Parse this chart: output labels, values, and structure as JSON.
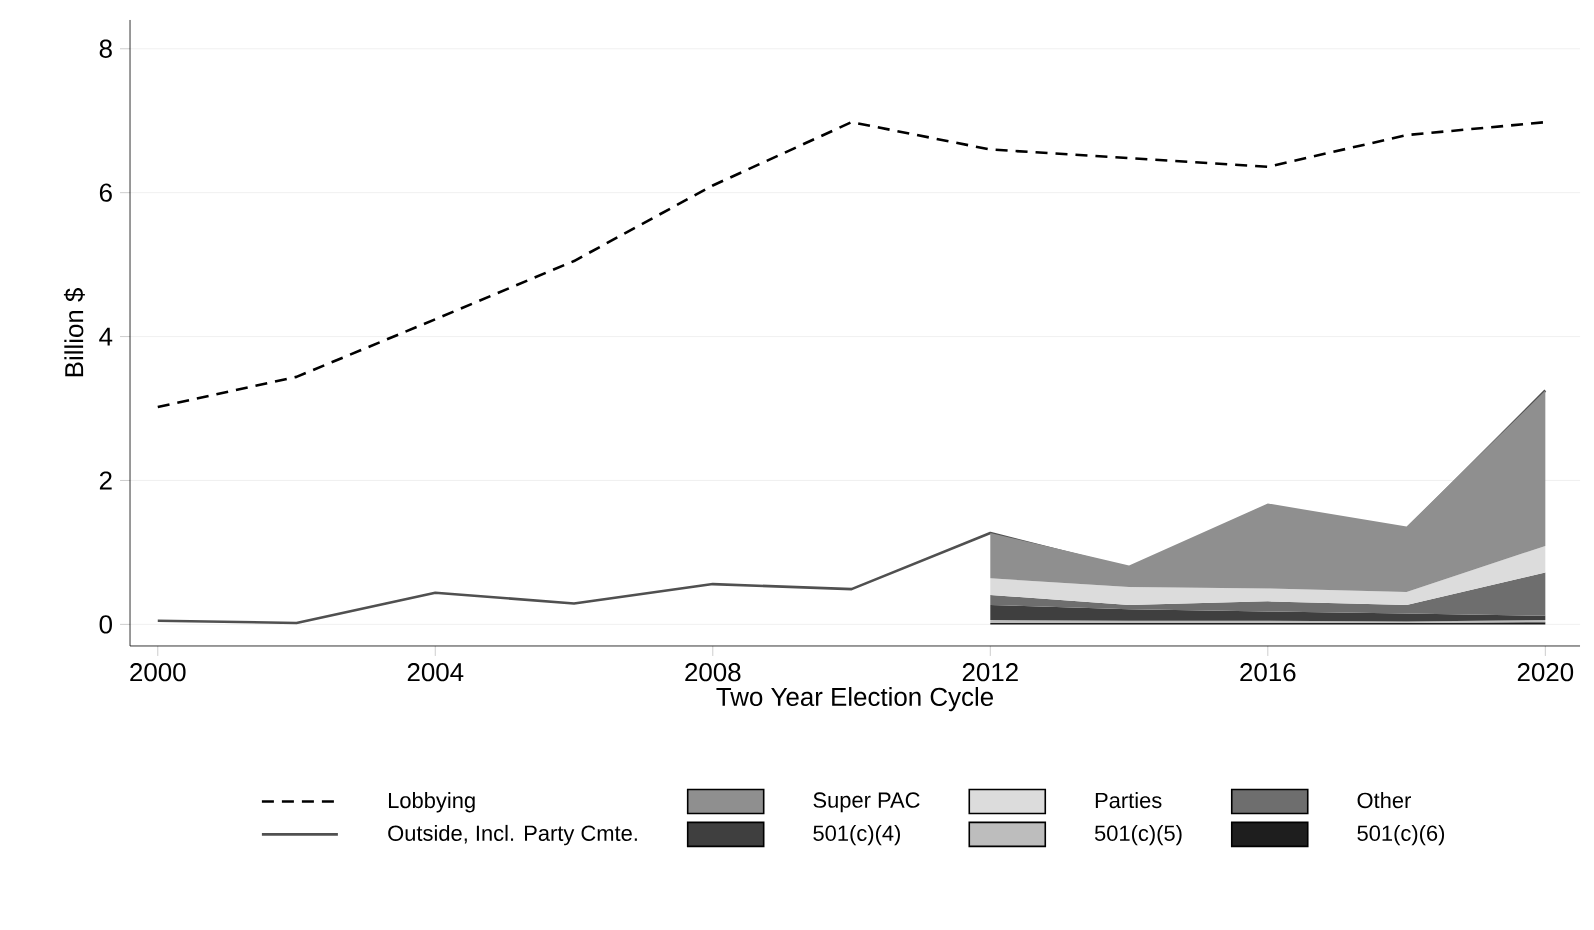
{
  "chart_data": {
    "type": "line",
    "xlabel": "Two Year Election Cycle",
    "ylabel": "Billion $",
    "x": [
      2000,
      2002,
      2004,
      2006,
      2008,
      2010,
      2012,
      2014,
      2016,
      2018,
      2020
    ],
    "xlim": [
      1999.6,
      2020.5
    ],
    "xticks": [
      2000,
      2004,
      2008,
      2012,
      2016,
      2020
    ],
    "ylim": [
      -0.3,
      8.4
    ],
    "yticks": [
      0,
      2,
      4,
      6,
      8
    ],
    "grid": "y",
    "legend": "bottom",
    "stacked": true,
    "series": [
      {
        "name": "Lobbying",
        "line_style": "dashed",
        "color": "#000000",
        "values": [
          3.02,
          3.44,
          4.24,
          5.05,
          6.1,
          6.98,
          6.6,
          6.48,
          6.36,
          6.8,
          6.98
        ]
      },
      {
        "name": "Outside, Incl. Party Cmte.",
        "line_style": "solid",
        "color": "#505050",
        "values": [
          0.05,
          0.02,
          0.44,
          0.29,
          0.56,
          0.49,
          1.27,
          0.78,
          1.65,
          1.32,
          3.25
        ]
      },
      {
        "name": "501(c)(6)",
        "type": "area",
        "color": "#1e1e1e",
        "x": [
          2012,
          2014,
          2016,
          2018,
          2020
        ],
        "values": [
          0.02,
          0.02,
          0.02,
          0.02,
          0.03
        ]
      },
      {
        "name": "501(c)(5)",
        "type": "area",
        "color": "#bdbdbd",
        "x": [
          2012,
          2014,
          2016,
          2018,
          2020
        ],
        "values": [
          0.04,
          0.03,
          0.03,
          0.02,
          0.03
        ]
      },
      {
        "name": "501(c)(4)",
        "type": "area",
        "color": "#3f3f3f",
        "x": [
          2012,
          2014,
          2016,
          2018,
          2020
        ],
        "values": [
          0.21,
          0.16,
          0.13,
          0.11,
          0.06
        ]
      },
      {
        "name": "Other",
        "type": "area",
        "color": "#6e6e6e",
        "x": [
          2012,
          2014,
          2016,
          2018,
          2020
        ],
        "values": [
          0.14,
          0.06,
          0.14,
          0.12,
          0.6
        ]
      },
      {
        "name": "Parties",
        "type": "area",
        "color": "#dcdcdc",
        "x": [
          2012,
          2014,
          2016,
          2018,
          2020
        ],
        "values": [
          0.23,
          0.25,
          0.18,
          0.18,
          0.37
        ]
      },
      {
        "name": "Super PAC",
        "type": "area",
        "color": "#8f8f8f",
        "x": [
          2012,
          2014,
          2016,
          2018,
          2020
        ],
        "values": [
          0.63,
          0.3,
          1.18,
          0.91,
          2.16
        ]
      }
    ]
  }
}
